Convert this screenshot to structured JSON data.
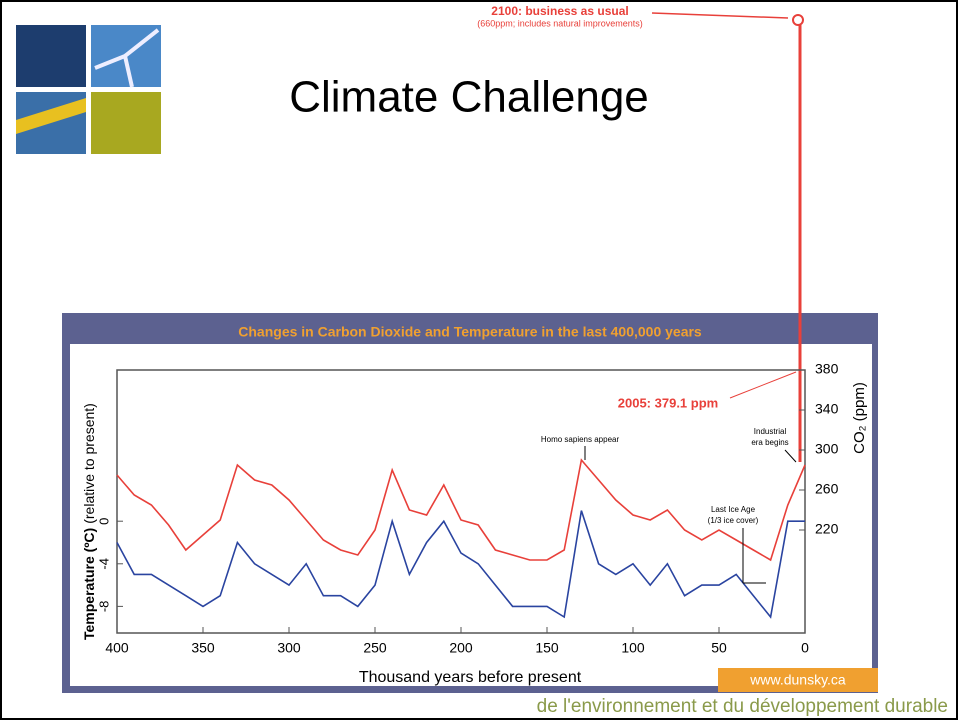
{
  "slide_title": "Climate Challenge",
  "footer": "de l'environnement et du développement durable",
  "top_annotation": {
    "headline": "2100: business as usual",
    "note": "(660ppm; includes natural improvements)"
  },
  "chart_data": {
    "type": "line",
    "title": "Changes in Carbon Dioxide and Temperature in the last 400,000 years",
    "xlabel": "Thousand years before present",
    "ylabel": "Temperature (ºC)",
    "ylabel_note": "(relative to present)",
    "y2label": "CO₂ (ppm)",
    "source": "www.dunsky.ca",
    "x": [
      400,
      390,
      380,
      370,
      360,
      350,
      340,
      330,
      320,
      310,
      300,
      290,
      280,
      270,
      260,
      250,
      240,
      230,
      220,
      210,
      200,
      190,
      180,
      170,
      160,
      150,
      140,
      130,
      120,
      110,
      100,
      90,
      80,
      70,
      60,
      50,
      40,
      30,
      20,
      10,
      0
    ],
    "series": [
      {
        "color": "#e8403a",
        "axis": "y2",
        "values": [
          275,
          255,
          245,
          225,
          200,
          215,
          230,
          285,
          270,
          265,
          250,
          230,
          210,
          200,
          195,
          220,
          280,
          240,
          235,
          265,
          230,
          225,
          200,
          195,
          190,
          190,
          200,
          290,
          270,
          250,
          235,
          230,
          240,
          220,
          210,
          220,
          210,
          200,
          190,
          245,
          285
        ]
      },
      {
        "color": "#2a44a0",
        "axis": "y",
        "values": [
          -2,
          -5,
          -5,
          -6,
          -7,
          -8,
          -7,
          -2,
          -4,
          -5,
          -6,
          -4,
          -7,
          -7,
          -8,
          -6,
          0,
          -5,
          -2,
          0,
          -3,
          -4,
          -6,
          -8,
          -8,
          -8,
          -9,
          1,
          -4,
          -5,
          -4,
          -6,
          -4,
          -7,
          -6,
          -6,
          -5,
          -7,
          -9,
          0,
          0
        ]
      }
    ],
    "xlim": [
      400,
      0
    ],
    "xticks": [
      400,
      350,
      300,
      250,
      200,
      150,
      100,
      50,
      0
    ],
    "ylim": [
      -10.5,
      14.2
    ],
    "yticks": [
      0,
      -4,
      -8
    ],
    "y2lim": [
      117,
      380
    ],
    "y2ticks": [
      220,
      260,
      300,
      340,
      380
    ],
    "annotations": [
      {
        "lines": [
          "2005: 379.1 ppm"
        ]
      },
      {
        "lines": [
          "Homo sapiens appear"
        ]
      },
      {
        "lines": [
          "Industrial",
          "era begins"
        ]
      },
      {
        "lines": [
          "Last Ice Age",
          "(1/3 ice cover)"
        ]
      }
    ]
  }
}
